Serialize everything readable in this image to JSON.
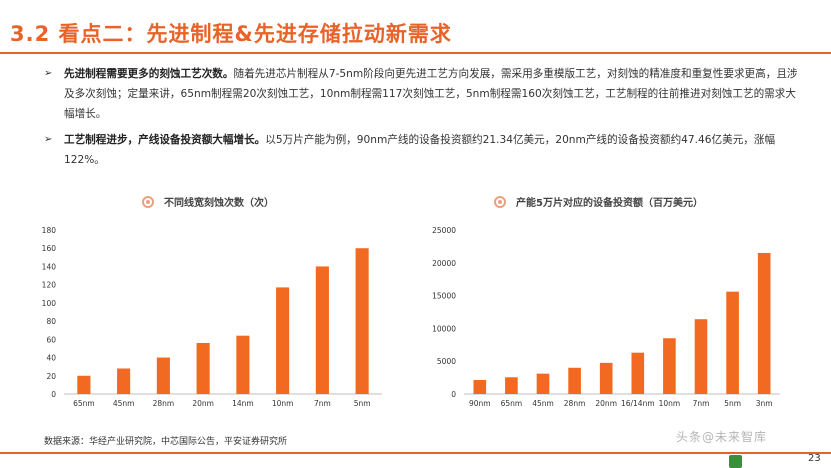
{
  "header": {
    "title": "3.2 看点二：先进制程&先进存储拉动新需求"
  },
  "bullets": [
    {
      "marker": "➢",
      "bold": "先进制程需要更多的刻蚀工艺次数。",
      "text": "随着先进芯片制程从7-5nm阶段向更先进工艺方向发展，需采用多重模版工艺，对刻蚀的精准度和重复性要求更高，且涉及多次刻蚀；定量来讲，65nm制程需20次刻蚀工艺，10nm制程需117次刻蚀工艺，5nm制程需160次刻蚀工艺，工艺制程的往前推进对刻蚀工艺的需求大幅增长。"
    },
    {
      "marker": "➢",
      "bold": "工艺制程进步，产线设备投资额大幅增长。",
      "text": "以5万片产能为例，90nm产线的设备投资额约21.34亿美元，20nm产线的设备投资额约47.46亿美元，涨幅122%。"
    }
  ],
  "chart_data": [
    {
      "type": "bar",
      "title": "不同线宽刻蚀次数（次）",
      "categories": [
        "65nm",
        "45nm",
        "28nm",
        "20nm",
        "14nm",
        "10nm",
        "7nm",
        "5nm"
      ],
      "values": [
        20,
        28,
        40,
        56,
        64,
        117,
        140,
        160
      ],
      "ylim": [
        0,
        180
      ],
      "yticks": [
        0,
        20,
        40,
        60,
        80,
        100,
        120,
        140,
        160,
        180
      ],
      "color": "#f26a21"
    },
    {
      "type": "bar",
      "title": "产能5万片对应的设备投资额（百万美元）",
      "categories": [
        "90nm",
        "65nm",
        "45nm",
        "28nm",
        "20nm",
        "16/14nm",
        "10nm",
        "7nm",
        "5nm",
        "3nm"
      ],
      "values": [
        2134,
        2550,
        3100,
        4000,
        4746,
        6300,
        8500,
        11400,
        15600,
        21500
      ],
      "ylim": [
        0,
        25000
      ],
      "yticks": [
        0,
        5000,
        10000,
        15000,
        20000,
        25000
      ],
      "color": "#f26a21"
    }
  ],
  "footer": {
    "source": "数据来源：华经产业研究院，中芯国际公告，平安证券研究所",
    "page": "23",
    "watermark": "头条@未来智库"
  }
}
